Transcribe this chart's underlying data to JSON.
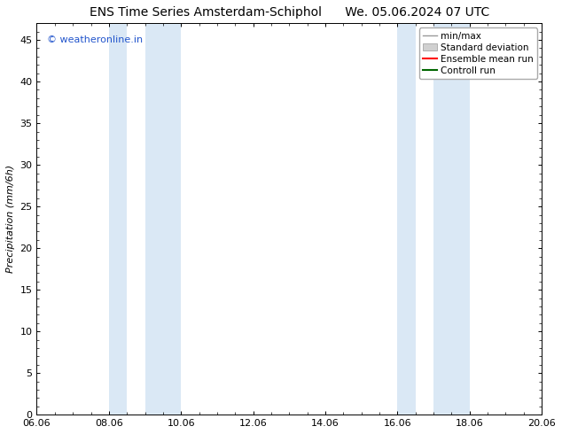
{
  "title_left": "ENS Time Series Amsterdam-Schiphol",
  "title_right": "We. 05.06.2024 07 UTC",
  "xlabel": "",
  "ylabel": "Precipitation (mm/6h)",
  "ylim": [
    0,
    47
  ],
  "yticks": [
    0,
    5,
    10,
    15,
    20,
    25,
    30,
    35,
    40,
    45
  ],
  "xtick_labels": [
    "06.06",
    "08.06",
    "10.06",
    "12.06",
    "14.06",
    "16.06",
    "18.06",
    "20.06"
  ],
  "xtick_positions": [
    0,
    2,
    4,
    6,
    8,
    10,
    12,
    14
  ],
  "background_color": "#ffffff",
  "plot_bg_color": "#ffffff",
  "shaded_bands": [
    {
      "x_start": 2.0,
      "x_end": 2.5,
      "color": "#dae8f5"
    },
    {
      "x_start": 3.0,
      "x_end": 4.0,
      "color": "#dae8f5"
    },
    {
      "x_start": 10.0,
      "x_end": 10.5,
      "color": "#dae8f5"
    },
    {
      "x_start": 11.0,
      "x_end": 12.0,
      "color": "#dae8f5"
    }
  ],
  "legend_entries": [
    {
      "label": "min/max",
      "color": "#aaaaaa",
      "lw": 1.5
    },
    {
      "label": "Standard deviation",
      "color": "#cccccc",
      "lw": 6
    },
    {
      "label": "Ensemble mean run",
      "color": "#ff0000",
      "lw": 1.5
    },
    {
      "label": "Controll run",
      "color": "#008800",
      "lw": 1.5
    }
  ],
  "watermark_text": "© weatheronline.in",
  "watermark_color": "#2255cc",
  "watermark_fontsize": 8,
  "title_fontsize": 10,
  "axis_fontsize": 8,
  "ylabel_fontsize": 8,
  "legend_fontsize": 7.5
}
